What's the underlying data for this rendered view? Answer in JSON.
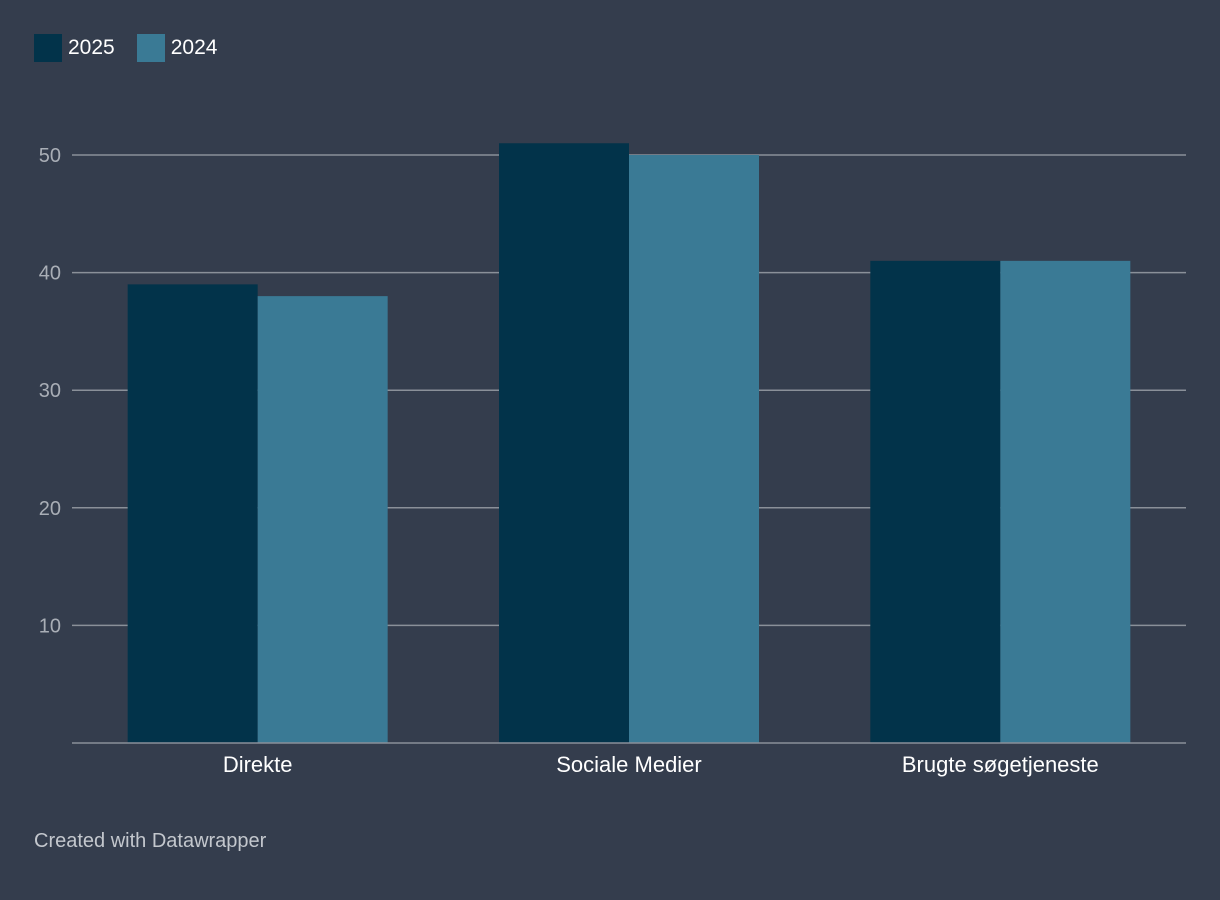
{
  "chart_data": {
    "type": "bar",
    "categories": [
      "Direkte",
      "Sociale Medier",
      "Brugte søgetjeneste"
    ],
    "series": [
      {
        "name": "2025",
        "values": [
          39,
          51,
          41
        ],
        "color": "#02334a"
      },
      {
        "name": "2024",
        "values": [
          38,
          50,
          41
        ],
        "color": "#3a7a95"
      }
    ],
    "yticks": [
      10,
      20,
      30,
      40,
      50
    ],
    "ylim": [
      0,
      50
    ],
    "grid": true,
    "legend_position": "top-left",
    "title": "",
    "xlabel": "",
    "ylabel": ""
  },
  "legend": {
    "items": [
      {
        "label": "2025",
        "color": "#02334a"
      },
      {
        "label": "2024",
        "color": "#3a7a95"
      }
    ]
  },
  "footer": {
    "credit": "Created with Datawrapper"
  },
  "colors": {
    "background": "#343d4d",
    "gridline": "#8a9099",
    "tick_label": "#a9aeb6",
    "category_label": "#ffffff"
  }
}
